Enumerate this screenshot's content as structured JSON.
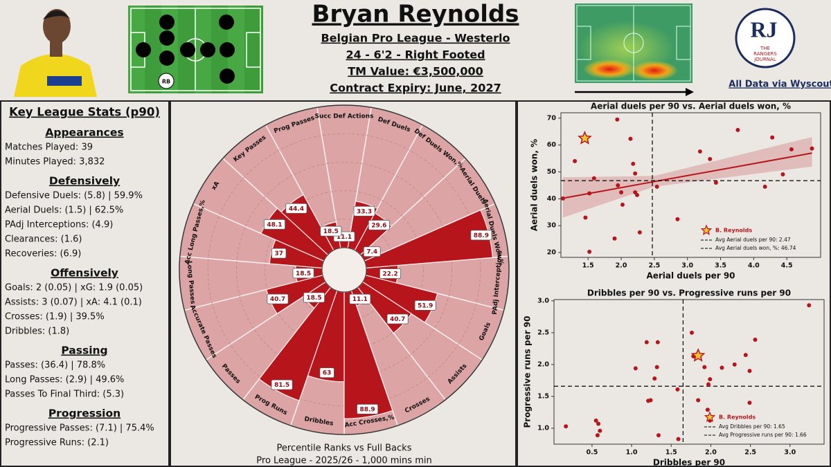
{
  "header": {
    "name": "Bryan Reynolds",
    "details": [
      "Belgian Pro League - Westerlo",
      "24 - 6'2 - Right Footed",
      "TM Value: €3,500,000",
      "Contract Expiry: June, 2027"
    ],
    "formation_label": "RB",
    "logo": {
      "initials": "RJ",
      "text": [
        "THE",
        "RANGERS",
        "JOURNAL"
      ]
    },
    "source": "All Data via  Wyscout"
  },
  "key_stats": {
    "title": "Key League Stats (p90)",
    "sections": [
      {
        "heading": "Appearances",
        "items": [
          "Matches Played: 39",
          "Minutes Played: 3,832"
        ]
      },
      {
        "heading": "Defensively",
        "items": [
          "Defensive Duels: (5.8) | 59.9%",
          "Aerial Duels: (1.5) | 62.5%",
          "PAdj Interceptions: (4.9)",
          "Clearances: (1.6)",
          "Recoveries: (6.9)"
        ]
      },
      {
        "heading": "Offensively",
        "items": [
          "Goals: 2 (0.05) | xG: 1.9 (0.05)",
          "Assists: 3 (0.07) | xA: 4.1 (0.1)",
          "Crosses: (1.9) | 39.5%",
          "Dribbles: (1.8)"
        ]
      },
      {
        "heading": "Passing",
        "items": [
          "Passes: (36.4) | 78.8%",
          "Long Passes: (2.9) | 49.6%",
          "Passes To Final Third: (5.3)"
        ]
      },
      {
        "heading": "Progression",
        "items": [
          "Progressive Passes: (7.1) | 75.4%",
          "Progressive Runs: (2.1)"
        ]
      }
    ]
  },
  "chart_data": [
    {
      "type": "pizza",
      "categories": [
        "Succ Def Actions",
        "Def Duels",
        "Def Duels Won,%",
        "Aerial Duels",
        "Aerial Duels Won,%",
        "PAdj Interceptions",
        "Goals",
        "Assists",
        "Crosses",
        "Acc Crosses,%",
        "Dribbles",
        "Prog Runs",
        "Passes",
        "Accurate Passes",
        "Long Passes",
        "Acc Long Passes,%",
        "xA",
        "Key Passes",
        "Prog Passes"
      ],
      "values": [
        11.1,
        33.3,
        29.6,
        7.4,
        88.9,
        22.2,
        51.9,
        40.7,
        11.1,
        88.9,
        63,
        81.5,
        18.5,
        40.7,
        18.5,
        37,
        48.1,
        44.4,
        18.5
      ],
      "rlim": [
        0,
        100
      ],
      "rgrid": [
        20,
        40,
        60,
        80
      ],
      "color": "#b5151b",
      "background_color": "#dca4a4",
      "footer": [
        "Percentile Ranks vs Full Backs",
        "Pro League - 2025/26 - 1,000 mins min"
      ]
    },
    {
      "type": "scatter",
      "title": "Aerial duels per 90 vs. Aerial duels won, %",
      "x_label": "Aerial duels per 90",
      "y_label": "Aerial duels won, %",
      "xlim": [
        1.09,
        5.01
      ],
      "ylim": [
        18.2,
        72
      ],
      "xticks": [
        1.5,
        {
          "value": 2,
          "label": "2.0"
        },
        2.5,
        {
          "value": 3,
          "label": "3.0"
        },
        3.5,
        {
          "value": 4,
          "label": "4.0"
        },
        4.5
      ],
      "yticks": [
        20,
        30,
        40,
        50,
        60,
        70
      ],
      "x": [
        1.12,
        1.3,
        1.52,
        1.52,
        1.46,
        1.59,
        1.94,
        1.9,
        1.95,
        2.0,
        2.02,
        2.14,
        2.18,
        2.21,
        2.21,
        2.24,
        2.28,
        2.54,
        2.85,
        3.19,
        3.34,
        3.43,
        3.76,
        4.17,
        4.28,
        4.44,
        4.57,
        4.88
      ],
      "y": [
        40.1,
        54,
        42,
        20.3,
        33,
        47.6,
        69.5,
        25.2,
        45,
        42.4,
        37.8,
        62.3,
        53,
        49.4,
        42.4,
        41.4,
        27.5,
        44.5,
        32.4,
        57.6,
        54.8,
        46,
        65.6,
        44.5,
        62.8,
        49.1,
        58.4,
        58.7
      ],
      "color": "#b5151b",
      "trend": {
        "x": [
          1.12,
          2.5,
          4.88
        ],
        "y": [
          40.2,
          46.4,
          57
        ],
        "lower": [
          33,
          44.5,
          52
        ],
        "upper": [
          48,
          48.5,
          63
        ]
      },
      "highlight": {
        "name": "B. Reynolds",
        "x": 1.45,
        "y": 62.5,
        "color": "#f2c230"
      },
      "averages": {
        "x": 2.47,
        "y": 46.74
      },
      "avg_labels": [
        "Avg Aerial duels per 90: 2.47",
        "Avg Aerial duels won, %: 46.74"
      ],
      "legend": "lower right"
    },
    {
      "type": "scatter",
      "title": "Dribbles per 90 vs. Progressive runs per 90",
      "x_label": "Dribbles per 90",
      "y_label": "Progressive runs per 90",
      "xlim": [
        0.02,
        3.43
      ],
      "ylim": [
        0.75,
        3.02
      ],
      "xticks": [
        0.5,
        {
          "value": 1,
          "label": "1.0"
        },
        1.5,
        {
          "value": 2,
          "label": "2.0"
        },
        2.5,
        {
          "value": 3,
          "label": "3.0"
        }
      ],
      "yticks": [
        {
          "value": 1,
          "label": "1.0"
        },
        1.5,
        {
          "value": 2,
          "label": "2.0"
        },
        2.5,
        {
          "value": 3,
          "label": "3.0"
        }
      ],
      "x": [
        0.17,
        0.55,
        0.58,
        0.6,
        0.57,
        1.05,
        1.19,
        1.21,
        1.24,
        1.29,
        1.32,
        1.33,
        1.34,
        1.58,
        1.59,
        1.76,
        1.84,
        1.78,
        1.92,
        1.96,
        1.97,
        1.99,
        1.99,
        2.14,
        2.3,
        2.44,
        2.49,
        2.56,
        2.49,
        3.24
      ],
      "y": [
        1.03,
        1.12,
        1.07,
        0.96,
        0.89,
        1.94,
        2.35,
        1.43,
        1.44,
        1.78,
        1.96,
        2.35,
        0.89,
        1.61,
        0.83,
        2.5,
        1.44,
        2.13,
        1.96,
        1.29,
        1.69,
        1.12,
        1.77,
        1.95,
        2.0,
        2.15,
        1.9,
        2.39,
        1.4,
        2.93
      ],
      "color": "#b5151b",
      "highlight": {
        "name": "B. Reynolds",
        "x": 1.84,
        "y": 2.14,
        "color": "#f2c230"
      },
      "averages": {
        "x": 1.65,
        "y": 1.66
      },
      "avg_labels": [
        "Avg Dribbles per 90: 1.65",
        "Avg Progressive runs per 90: 1.66"
      ],
      "legend": "lower right"
    }
  ]
}
